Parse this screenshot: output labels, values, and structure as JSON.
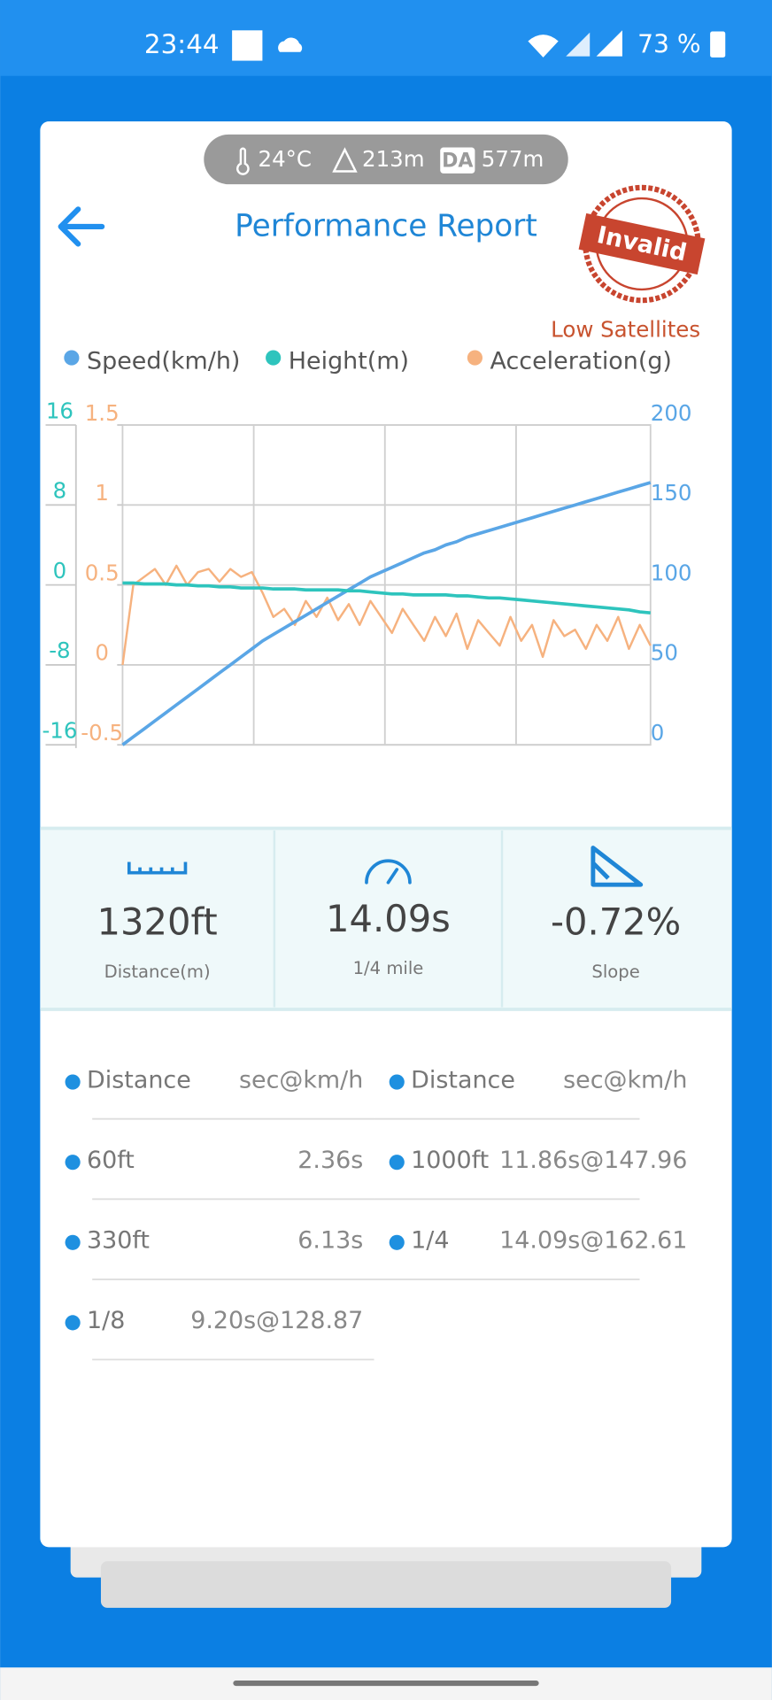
{
  "status_bar": {
    "time": "23:44",
    "battery": "73 %"
  },
  "conditions": {
    "temperature": "24°C",
    "altitude": "213m",
    "da_label": "DA",
    "density_altitude": "577m"
  },
  "header": {
    "title": "Performance Report",
    "stamp": "Invalid",
    "warning": "Low Satellites"
  },
  "chart_data": {
    "type": "line",
    "series": [
      {
        "name": "Speed(km/h)",
        "color": "#5aa6e6",
        "axis": "y2",
        "values": [
          0,
          5,
          10,
          15,
          20,
          25,
          30,
          35,
          40,
          45,
          50,
          55,
          60,
          65,
          69,
          73,
          77,
          81,
          85,
          89,
          93,
          97,
          101,
          105,
          108,
          111,
          114,
          117,
          120,
          122,
          125,
          127,
          130,
          132,
          134,
          136,
          138,
          140,
          142,
          144,
          146,
          148,
          150,
          152,
          154,
          156,
          158,
          160,
          162,
          164
        ]
      },
      {
        "name": "Height(m)",
        "color": "#2ec4bd",
        "axis": "y",
        "values": [
          0.2,
          0.2,
          0.1,
          0.1,
          0.1,
          0,
          0,
          -0.1,
          -0.1,
          -0.2,
          -0.2,
          -0.3,
          -0.3,
          -0.3,
          -0.4,
          -0.4,
          -0.4,
          -0.5,
          -0.5,
          -0.5,
          -0.5,
          -0.6,
          -0.6,
          -0.7,
          -0.8,
          -0.9,
          -0.9,
          -1,
          -1,
          -1,
          -1,
          -1.1,
          -1.1,
          -1.2,
          -1.3,
          -1.3,
          -1.4,
          -1.5,
          -1.6,
          -1.7,
          -1.8,
          -1.9,
          -2,
          -2.1,
          -2.2,
          -2.3,
          -2.4,
          -2.5,
          -2.7,
          -2.8
        ]
      },
      {
        "name": "Acceleration(g)",
        "color": "#f6b27f",
        "axis": "y3",
        "values": [
          0,
          0.5,
          0.55,
          0.6,
          0.5,
          0.62,
          0.5,
          0.58,
          0.6,
          0.52,
          0.6,
          0.55,
          0.58,
          0.45,
          0.3,
          0.35,
          0.25,
          0.4,
          0.3,
          0.42,
          0.28,
          0.38,
          0.25,
          0.4,
          0.3,
          0.2,
          0.35,
          0.25,
          0.15,
          0.3,
          0.18,
          0.32,
          0.1,
          0.28,
          0.2,
          0.12,
          0.3,
          0.15,
          0.25,
          0.05,
          0.28,
          0.18,
          0.22,
          0.1,
          0.25,
          0.15,
          0.3,
          0.1,
          0.25,
          0.12
        ]
      }
    ],
    "ylim": [
      -16,
      16
    ],
    "yticks": [
      16,
      8,
      0,
      -8,
      -16
    ],
    "y3lim": [
      -0.5,
      1.5
    ],
    "y3ticks": [
      1.5,
      1,
      0.5,
      0,
      -0.5
    ],
    "y2lim": [
      0,
      200
    ],
    "y2ticks": [
      200,
      150,
      100,
      50,
      0
    ],
    "grid": true
  },
  "summary": [
    {
      "value": "1320ft",
      "label": "Distance(m)"
    },
    {
      "value": "14.09s",
      "label": "1/4 mile"
    },
    {
      "value": "-0.72%",
      "label": "Slope"
    }
  ],
  "splits": [
    {
      "header": [
        "Distance",
        "sec@km/h"
      ],
      "rows": [
        [
          "60ft",
          "2.36s"
        ],
        [
          "330ft",
          "6.13s"
        ],
        [
          "1/8",
          "9.20s@128.87"
        ]
      ]
    },
    {
      "header": [
        "Distance",
        "sec@km/h"
      ],
      "rows": [
        [
          "1000ft",
          "11.86s@147.96"
        ],
        [
          "1/4",
          "14.09s@162.61"
        ]
      ]
    }
  ]
}
